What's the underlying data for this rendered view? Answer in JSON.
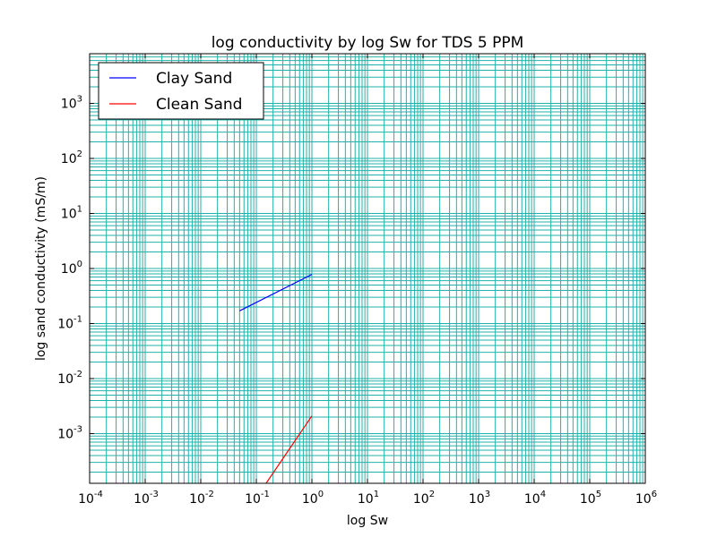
{
  "chart_data": {
    "type": "line",
    "title": "log conductivity by log Sw for TDS 5 PPM",
    "xlabel": "log Sw",
    "ylabel": "log sand conductivity (mS/m)",
    "xscale": "log",
    "yscale": "log",
    "xlim": [
      0.0001,
      1000000
    ],
    "ylim": [
      0.000125,
      8000
    ],
    "grid": "major and minor",
    "grid_color": "#20b2aa",
    "legend_position": "top-left",
    "x_ticks": [
      {
        "base": "10",
        "exp": "-4",
        "value": 0.0001
      },
      {
        "base": "10",
        "exp": "-3",
        "value": 0.001
      },
      {
        "base": "10",
        "exp": "-2",
        "value": 0.01
      },
      {
        "base": "10",
        "exp": "-1",
        "value": 0.1
      },
      {
        "base": "10",
        "exp": "0",
        "value": 1
      },
      {
        "base": "10",
        "exp": "1",
        "value": 10
      },
      {
        "base": "10",
        "exp": "2",
        "value": 100
      },
      {
        "base": "10",
        "exp": "3",
        "value": 1000
      },
      {
        "base": "10",
        "exp": "4",
        "value": 10000
      },
      {
        "base": "10",
        "exp": "5",
        "value": 100000
      },
      {
        "base": "10",
        "exp": "6",
        "value": 1000000
      }
    ],
    "y_ticks": [
      {
        "base": "10",
        "exp": "-3",
        "value": 0.001
      },
      {
        "base": "10",
        "exp": "-2",
        "value": 0.01
      },
      {
        "base": "10",
        "exp": "-1",
        "value": 0.1
      },
      {
        "base": "10",
        "exp": "0",
        "value": 1
      },
      {
        "base": "10",
        "exp": "1",
        "value": 10
      },
      {
        "base": "10",
        "exp": "2",
        "value": 100
      },
      {
        "base": "10",
        "exp": "3",
        "value": 1000
      }
    ],
    "series": [
      {
        "name": "Clay Sand",
        "color": "#0000ff",
        "x": [
          0.05,
          1
        ],
        "y": [
          0.17,
          0.78
        ]
      },
      {
        "name": "Clean Sand",
        "color": "#ff0000",
        "x": [
          0.15,
          1
        ],
        "y": [
          0.000125,
          0.0021
        ]
      }
    ]
  }
}
